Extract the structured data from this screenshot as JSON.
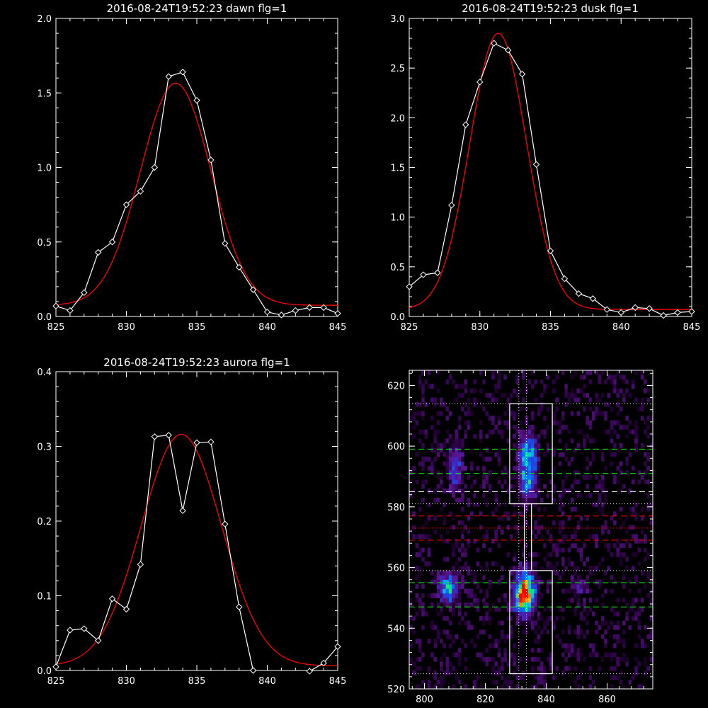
{
  "chart_data": [
    {
      "type": "line",
      "title": "2016-08-24T19:52:23 dawn flg=1",
      "xlim": [
        825,
        845
      ],
      "ylim": [
        0,
        2.0
      ],
      "xticks": [
        "825",
        "830",
        "835",
        "840",
        "845"
      ],
      "yticks": [
        "0.0",
        "0.5",
        "1.0",
        "1.5",
        "2.0"
      ],
      "series": [
        {
          "style": "white-diamond-line",
          "x": [
            825,
            826,
            827,
            828,
            829,
            830,
            831,
            832,
            833,
            834,
            835,
            836,
            837,
            838,
            839,
            840,
            841,
            842,
            843,
            844,
            845
          ],
          "y": [
            0.07,
            0.04,
            0.16,
            0.43,
            0.5,
            0.75,
            0.84,
            1.0,
            1.61,
            1.64,
            1.45,
            1.05,
            0.49,
            0.33,
            0.18,
            0.03,
            0.01,
            0.04,
            0.06,
            0.06,
            0.02
          ]
        },
        {
          "style": "red-fit",
          "x": [
            825,
            845
          ],
          "peak": 1.49,
          "center": 833.5,
          "sigma": 2.5,
          "offset": 0.075
        }
      ]
    },
    {
      "type": "line",
      "title": "2016-08-24T19:52:23 dusk flg=1",
      "xlim": [
        825,
        845
      ],
      "ylim": [
        0,
        3.0
      ],
      "xticks": [
        "825",
        "830",
        "835",
        "840",
        "845"
      ],
      "yticks": [
        "0.0",
        "0.5",
        "1.0",
        "1.5",
        "2.0",
        "2.5",
        "3.0"
      ],
      "series": [
        {
          "style": "white-diamond-line",
          "x": [
            825,
            826,
            827,
            828,
            829,
            830,
            831,
            832,
            833,
            834,
            835,
            836,
            837,
            838,
            839,
            840,
            841,
            842,
            843,
            844,
            845
          ],
          "y": [
            0.3,
            0.42,
            0.44,
            1.12,
            1.93,
            2.36,
            2.75,
            2.68,
            2.44,
            1.53,
            0.66,
            0.38,
            0.23,
            0.18,
            0.07,
            0.04,
            0.09,
            0.08,
            0.01,
            0.04,
            0.05
          ]
        },
        {
          "style": "red-fit",
          "x": [
            825,
            845
          ],
          "peak": 2.78,
          "center": 831.3,
          "sigma": 2.0,
          "offset": 0.07
        }
      ]
    },
    {
      "type": "line",
      "title": "2016-08-24T19:52:23 aurora flg=1",
      "xlim": [
        825,
        845
      ],
      "ylim": [
        0,
        0.4
      ],
      "xticks": [
        "825",
        "830",
        "835",
        "840",
        "845"
      ],
      "yticks": [
        "0.0",
        "0.1",
        "0.2",
        "0.3",
        "0.4"
      ],
      "series": [
        {
          "style": "white-diamond-line",
          "x": [
            825,
            826,
            827,
            828,
            829,
            830,
            831,
            832,
            833,
            834,
            835,
            836,
            837,
            838,
            839,
            840,
            841,
            842,
            843,
            844,
            845
          ],
          "y": [
            0.005,
            0.054,
            0.056,
            0.04,
            0.096,
            0.082,
            0.142,
            0.313,
            0.315,
            0.214,
            0.305,
            0.306,
            0.196,
            0.085,
            0.0,
            -0.002,
            -0.003,
            -0.004,
            -0.001,
            0.01,
            0.032
          ]
        },
        {
          "style": "red-fit",
          "x": [
            825,
            845
          ],
          "peak": 0.31,
          "center": 833.9,
          "sigma": 2.85,
          "offset": 0.006
        }
      ]
    },
    {
      "type": "heatmap",
      "xlim": [
        795,
        875
      ],
      "ylim": [
        520,
        625
      ],
      "xticks": [
        "800",
        "820",
        "840",
        "860"
      ],
      "yticks": [
        "520",
        "540",
        "560",
        "580",
        "600",
        "620"
      ],
      "blobs": [
        {
          "x": 833,
          "y": 552,
          "sx": 2.2,
          "sy": 4.5,
          "amp": 1.0
        },
        {
          "x": 832,
          "y": 549,
          "sx": 1.3,
          "sy": 2.5,
          "amp": 0.35
        },
        {
          "x": 808,
          "y": 553,
          "sx": 2.0,
          "sy": 3.0,
          "amp": 0.6
        },
        {
          "x": 834,
          "y": 598,
          "sx": 2.0,
          "sy": 4.0,
          "amp": 0.55
        },
        {
          "x": 834,
          "y": 588,
          "sx": 2.0,
          "sy": 4.0,
          "amp": 0.45
        },
        {
          "x": 810,
          "y": 593,
          "sx": 1.8,
          "sy": 5.0,
          "amp": 0.3
        },
        {
          "x": 851,
          "y": 554,
          "sx": 1.8,
          "sy": 2.0,
          "amp": 0.2
        }
      ],
      "boxes": [
        {
          "x0": 828,
          "x1": 842,
          "y0": 581,
          "y1": 614
        },
        {
          "x0": 828,
          "x1": 842,
          "y0": 525,
          "y1": 559
        }
      ],
      "hlines": [
        {
          "y": 599,
          "color": "#00ff00",
          "dash": "dashed"
        },
        {
          "y": 591,
          "color": "#00ff00",
          "dash": "dashed"
        },
        {
          "y": 585,
          "color": "#ffffff",
          "dash": "dashed"
        },
        {
          "y": 577,
          "color": "#ff0000",
          "dash": "dashed"
        },
        {
          "y": 569,
          "color": "#ff0000",
          "dash": "dashed"
        },
        {
          "y": 555,
          "color": "#00ff00",
          "dash": "dashed"
        },
        {
          "y": 547,
          "color": "#00ff00",
          "dash": "dashed"
        },
        {
          "y": 614,
          "color": "#ffffff",
          "dash": "dotted"
        },
        {
          "y": 581,
          "color": "#ffffff",
          "dash": "dotted"
        },
        {
          "y": 573,
          "color": "#ff0000",
          "dash": "dotted"
        },
        {
          "y": 559,
          "color": "#ffffff",
          "dash": "dotted"
        },
        {
          "y": 525,
          "color": "#ffffff",
          "dash": "dotted"
        }
      ],
      "vlines": [
        {
          "x": 831,
          "color": "#ffffff",
          "dash": "dotted"
        },
        {
          "x": 833.5,
          "color": "#ffffff",
          "dash": "dotted"
        }
      ],
      "connector": {
        "x": 834,
        "y0": 559,
        "y1": 581
      }
    }
  ]
}
